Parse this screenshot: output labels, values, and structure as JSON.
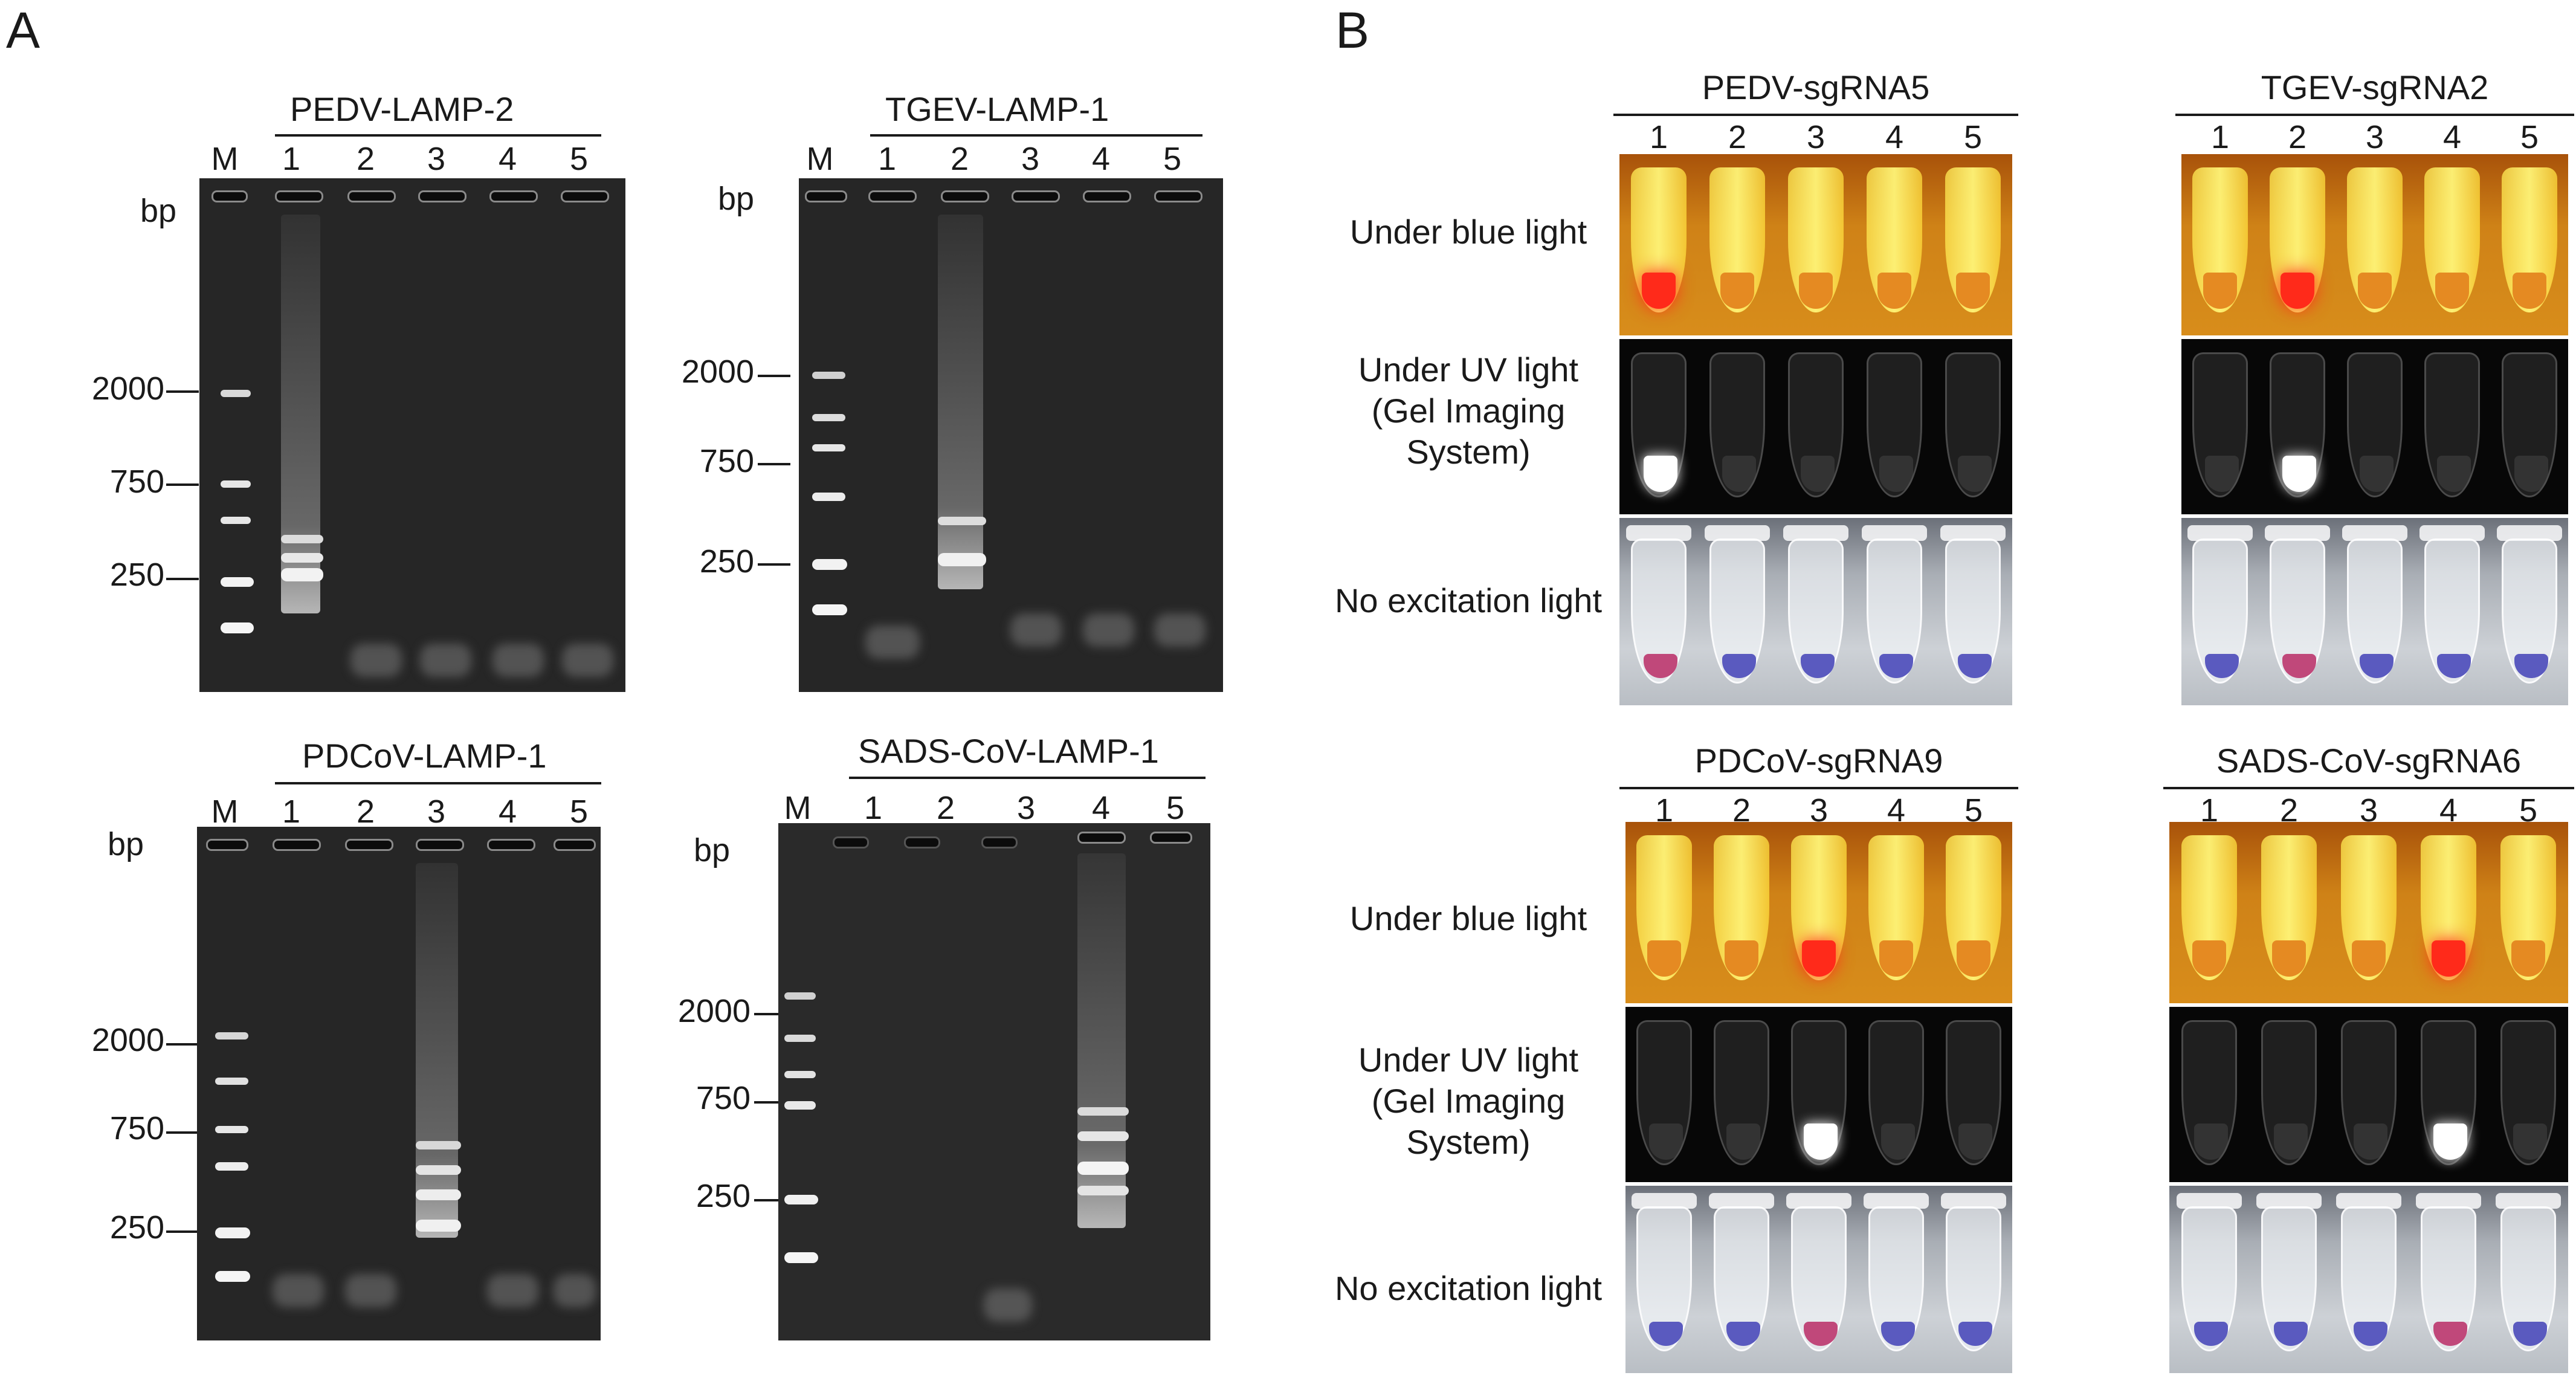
{
  "panel_a": {
    "letter": "A",
    "bp_unit": "bp",
    "marker_label": "M",
    "lanes": [
      "1",
      "2",
      "3",
      "4",
      "5"
    ],
    "marker_sizes": [
      "2000",
      "750",
      "250"
    ],
    "gels": [
      {
        "title": "PEDV-LAMP-2",
        "positive_lane": "1"
      },
      {
        "title": "TGEV-LAMP-1",
        "positive_lane": "2"
      },
      {
        "title": "PDCoV-LAMP-1",
        "positive_lane": "3"
      },
      {
        "title": "SADS-CoV-LAMP-1",
        "positive_lane": "4"
      }
    ]
  },
  "panel_b": {
    "letter": "B",
    "lanes": [
      "1",
      "2",
      "3",
      "4",
      "5"
    ],
    "row_labels": {
      "blue": "Under blue light",
      "uv_line1": "Under UV light",
      "uv_line2": "(Gel Imaging",
      "uv_line3": "System)",
      "none": "No excitation light"
    },
    "assays": [
      {
        "title": "PEDV-sgRNA5",
        "positive_tube": "1"
      },
      {
        "title": "TGEV-sgRNA2",
        "positive_tube": "2"
      },
      {
        "title": "PDCoV-sgRNA9",
        "positive_tube": "3"
      },
      {
        "title": "SADS-CoV-sgRNA6",
        "positive_tube": "4"
      }
    ]
  },
  "colors": {
    "gel_background": "#262626",
    "positive_blue_light": "#ff2a1a",
    "negative_blue_light": "#e58a22",
    "positive_uv": "#ffffff",
    "positive_no_light": "#c0487a",
    "negative_no_light": "#5a5abf"
  }
}
